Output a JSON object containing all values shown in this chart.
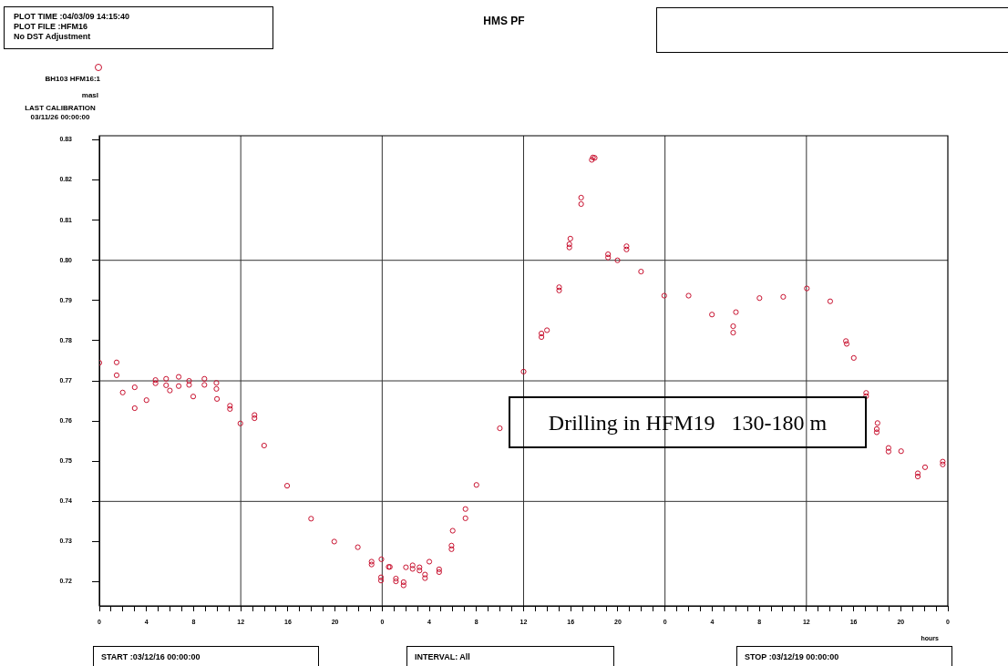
{
  "chart_data": {
    "type": "scatter",
    "title": "HMS PF",
    "xlabel": "hours",
    "legend": "top left",
    "marker": "circle",
    "grid": false,
    "annotations": [
      "PLOT TIME :04/03/09 14:15:40",
      "PLOT FILE :HFM16",
      "No DST Adjustment",
      "LAST CALIBRATION",
      "03/11/26 00:00:00",
      "Drilling in HFM19   130-180 m",
      "START :03/12/16 00:00:00",
      "INTERVAL: All",
      "STOP :03/12/19 00:00:00",
      "masl"
    ],
    "xlim": [
      "--12-16T00:00",
      "--12-19T00:00"
    ],
    "ylim": [
      0.714,
      0.831
    ],
    "xticks": [
      {
        "value": "--12-16T00:00",
        "label": "0"
      },
      {
        "value": "--12-16T01:00",
        "label": null
      },
      {
        "value": "--12-16T02:00",
        "label": null
      },
      {
        "value": "--12-16T03:00",
        "label": null
      },
      {
        "value": "--12-16T04:00",
        "label": "4"
      },
      {
        "value": "--12-16T05:00",
        "label": null
      },
      {
        "value": "--12-16T06:00",
        "label": null
      },
      {
        "value": "--12-16T07:00",
        "label": null
      },
      {
        "value": "--12-16T08:00",
        "label": "8"
      },
      {
        "value": "--12-16T09:00",
        "label": null
      },
      {
        "value": "--12-16T10:00",
        "label": null
      },
      {
        "value": "--12-16T11:00",
        "label": null
      },
      {
        "value": "--12-16T12:00",
        "label": "12"
      },
      {
        "value": "--12-16T13:00",
        "label": null
      },
      {
        "value": "--12-16T14:00",
        "label": null
      },
      {
        "value": "--12-16T15:00",
        "label": null
      },
      {
        "value": "--12-16T16:00",
        "label": "16"
      },
      {
        "value": "--12-16T17:00",
        "label": null
      },
      {
        "value": "--12-16T18:00",
        "label": null
      },
      {
        "value": "--12-16T19:00",
        "label": null
      },
      {
        "value": "--12-16T20:00",
        "label": "20"
      },
      {
        "value": "--12-16T21:00",
        "label": null
      },
      {
        "value": "--12-16T22:00",
        "label": null
      },
      {
        "value": "--12-16T23:00",
        "label": null
      },
      {
        "value": "--12-17T00:00",
        "label": "0"
      },
      {
        "value": "--12-17T01:00",
        "label": null
      },
      {
        "value": "--12-17T02:00",
        "label": null
      },
      {
        "value": "--12-17T03:00",
        "label": null
      },
      {
        "value": "--12-17T04:00",
        "label": "4"
      },
      {
        "value": "--12-17T05:00",
        "label": null
      },
      {
        "value": "--12-17T06:00",
        "label": null
      },
      {
        "value": "--12-17T07:00",
        "label": null
      },
      {
        "value": "--12-17T08:00",
        "label": "8"
      },
      {
        "value": "--12-17T09:00",
        "label": null
      },
      {
        "value": "--12-17T10:00",
        "label": null
      },
      {
        "value": "--12-17T11:00",
        "label": null
      },
      {
        "value": "--12-17T12:00",
        "label": "12"
      },
      {
        "value": "--12-17T13:00",
        "label": null
      },
      {
        "value": "--12-17T14:00",
        "label": null
      },
      {
        "value": "--12-17T15:00",
        "label": null
      },
      {
        "value": "--12-17T16:00",
        "label": "16"
      },
      {
        "value": "--12-17T17:00",
        "label": null
      },
      {
        "value": "--12-17T18:00",
        "label": null
      },
      {
        "value": "--12-17T19:00",
        "label": null
      },
      {
        "value": "--12-17T20:00",
        "label": "20"
      },
      {
        "value": "--12-17T21:00",
        "label": null
      },
      {
        "value": "--12-17T22:00",
        "label": null
      },
      {
        "value": "--12-17T23:00",
        "label": null
      },
      {
        "value": "--12-18T00:00",
        "label": "0"
      },
      {
        "value": "--12-18T01:00",
        "label": null
      },
      {
        "value": "--12-18T02:00",
        "label": null
      },
      {
        "value": "--12-18T03:00",
        "label": null
      },
      {
        "value": "--12-18T04:00",
        "label": "4"
      },
      {
        "value": "--12-18T05:00",
        "label": null
      },
      {
        "value": "--12-18T06:00",
        "label": null
      },
      {
        "value": "--12-18T07:00",
        "label": null
      },
      {
        "value": "--12-18T08:00",
        "label": "8"
      },
      {
        "value": "--12-18T09:00",
        "label": null
      },
      {
        "value": "--12-18T10:00",
        "label": null
      },
      {
        "value": "--12-18T11:00",
        "label": null
      },
      {
        "value": "--12-18T12:00",
        "label": "12"
      },
      {
        "value": "--12-18T13:00",
        "label": null
      },
      {
        "value": "--12-18T14:00",
        "label": null
      },
      {
        "value": "--12-18T15:00",
        "label": null
      },
      {
        "value": "--12-18T16:00",
        "label": "16"
      },
      {
        "value": "--12-18T17:00",
        "label": null
      },
      {
        "value": "--12-18T18:00",
        "label": null
      },
      {
        "value": "--12-18T19:00",
        "label": null
      },
      {
        "value": "--12-18T20:00",
        "label": "20"
      },
      {
        "value": "--12-18T21:00",
        "label": null
      },
      {
        "value": "--12-18T22:00",
        "label": null
      },
      {
        "value": "--12-18T23:00",
        "label": null
      },
      {
        "value": "--12-19T00:00",
        "label": "0"
      }
    ],
    "yticks": [
      0.72,
      0.73,
      0.74,
      0.75,
      0.76,
      0.77,
      0.78,
      0.79,
      {
        "value": 0.8,
        "label": "0.80"
      },
      0.81,
      0.82,
      0.83
    ],
    "ref_lines": [
      {
        "axis": "x",
        "value": "--12-16T12:00",
        "color": "#333333"
      },
      {
        "axis": "x",
        "value": "--12-17T00:00",
        "color": "#333333"
      },
      {
        "axis": "x",
        "value": "--12-17T12:00",
        "color": "#333333"
      },
      {
        "axis": "x",
        "value": "--12-18T00:00",
        "color": "#333333"
      },
      {
        "axis": "x",
        "value": "--12-18T12:00",
        "color": "#333333"
      },
      {
        "axis": "y",
        "value": 0.74,
        "color": "#333333"
      },
      {
        "axis": "y",
        "value": 0.77,
        "color": "#333333"
      },
      {
        "axis": "y",
        "value": 0.8,
        "color": "#333333"
      }
    ],
    "series": [
      {
        "name": "BH103 HFM16:1",
        "color": "#c8102e",
        "x": [
          "--12-16T00:00",
          "--12-16T01:28",
          "--12-16T01:28",
          "--12-16T01:59",
          "--12-16T03:00",
          "--12-16T03:00",
          "--12-16T04:00",
          "--12-16T04:46",
          "--12-16T04:46",
          "--12-16T05:40",
          "--12-16T05:40",
          "--12-16T05:59",
          "--12-16T06:44",
          "--12-16T06:44",
          "--12-16T07:37",
          "--12-16T07:37",
          "--12-16T07:58",
          "--12-16T08:55",
          "--12-16T08:55",
          "--12-16T09:56",
          "--12-16T09:56",
          "--12-16T09:59",
          "--12-16T11:05",
          "--12-16T11:05",
          "--12-16T11:58",
          "--12-16T13:10",
          "--12-16T13:10",
          "--12-16T13:59",
          "--12-16T15:56",
          "--12-16T17:58",
          "--12-16T19:56",
          "--12-16T21:56",
          "--12-16T23:06",
          "--12-16T23:06",
          "--12-16T23:56",
          "--12-16T23:54",
          "--12-16T23:54",
          "--12-17T00:33",
          "--12-17T00:39",
          "--12-17T01:10",
          "--12-17T01:10",
          "--12-17T01:49",
          "--12-17T01:49",
          "--12-17T02:01",
          "--12-17T02:35",
          "--12-17T02:35",
          "--12-17T03:10",
          "--12-17T03:10",
          "--12-17T03:38",
          "--12-17T03:38",
          "--12-17T04:00",
          "--12-17T04:50",
          "--12-17T04:50",
          "--12-17T05:53",
          "--12-17T05:53",
          "--12-17T05:59",
          "--12-17T07:04",
          "--12-17T07:04",
          "--12-17T08:00",
          "--12-17T09:59",
          "--12-17T12:00",
          "--12-17T13:31",
          "--12-17T13:31",
          "--12-17T13:59",
          "--12-17T15:01",
          "--12-17T15:01",
          "--12-17T15:53",
          "--12-17T15:53",
          "--12-17T15:58",
          "--12-17T16:53",
          "--12-17T16:53",
          "--12-17T17:47",
          "--12-17T17:53",
          "--12-17T18:02",
          "--12-17T19:10",
          "--12-17T19:10",
          "--12-17T19:58",
          "--12-17T20:44",
          "--12-17T20:44",
          "--12-17T21:58",
          "--12-17T23:56",
          "--12-18T02:00",
          "--12-18T03:59",
          "--12-18T05:47",
          "--12-18T05:47",
          "--12-18T06:01",
          "--12-18T08:01",
          "--12-18T10:02",
          "--12-18T12:02",
          "--12-18T14:01",
          "--12-18T15:21",
          "--12-18T15:25",
          "--12-18T16:01",
          "--12-18T17:04",
          "--12-18T17:04",
          "--12-18T18:02",
          "--12-18T17:58",
          "--12-18T17:58",
          "--12-18T18:58",
          "--12-18T18:58",
          "--12-18T20:02",
          "--12-18T21:27",
          "--12-18T21:27",
          "--12-18T22:04",
          "--12-18T23:34",
          "--12-18T23:34"
        ],
        "values": [
          0.7745,
          0.7746,
          0.7714,
          0.7671,
          0.7684,
          0.7632,
          0.7652,
          0.7702,
          0.7694,
          0.7705,
          0.7689,
          0.7676,
          0.771,
          0.7687,
          0.77,
          0.769,
          0.7661,
          0.7705,
          0.769,
          0.7695,
          0.768,
          0.7655,
          0.7638,
          0.763,
          0.7594,
          0.7615,
          0.7607,
          0.7539,
          0.7439,
          0.7357,
          0.73,
          0.7286,
          0.725,
          0.7243,
          0.7256,
          0.7211,
          0.7203,
          0.7237,
          0.7237,
          0.7208,
          0.7201,
          0.7199,
          0.7191,
          0.7236,
          0.7241,
          0.7232,
          0.7236,
          0.7228,
          0.7218,
          0.7209,
          0.725,
          0.7231,
          0.7224,
          0.729,
          0.7281,
          0.7327,
          0.7381,
          0.7358,
          0.7441,
          0.7582,
          0.7723,
          0.7818,
          0.7809,
          0.7826,
          0.7933,
          0.7925,
          0.804,
          0.8032,
          0.8054,
          0.8156,
          0.814,
          0.825,
          0.8256,
          0.8255,
          0.8015,
          0.8007,
          0.8,
          0.8035,
          0.8027,
          0.7972,
          0.7912,
          0.7912,
          0.7865,
          0.7836,
          0.782,
          0.7871,
          0.7906,
          0.7909,
          0.793,
          0.7898,
          0.7799,
          0.7792,
          0.7757,
          0.767,
          0.7662,
          0.7595,
          0.758,
          0.7572,
          0.7533,
          0.7524,
          0.7525,
          0.747,
          0.7462,
          0.7485,
          0.7499,
          0.7492
        ]
      }
    ]
  }
}
